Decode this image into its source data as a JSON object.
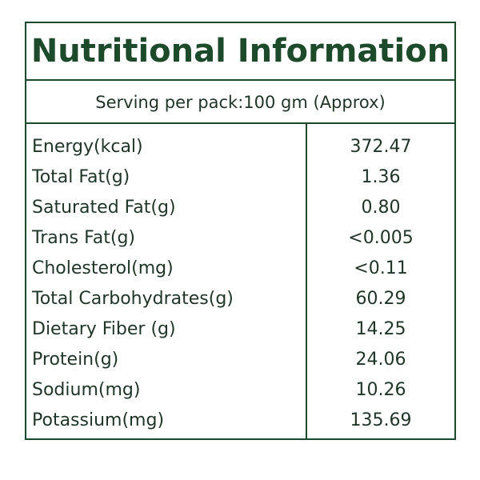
{
  "header": {
    "title": "Nutritional Information",
    "serving": "Serving per pack:100 gm (Approx)"
  },
  "table": {
    "rows": [
      [
        "Energy(kcal)",
        "372.47"
      ],
      [
        "Total Fat(g)",
        "1.36"
      ],
      [
        "Saturated Fat(g)",
        "0.80"
      ],
      [
        "Trans Fat(g)",
        "<0.005"
      ],
      [
        "Cholesterol(mg)",
        "<0.11"
      ],
      [
        "Total Carbohydrates(g)",
        "60.29"
      ],
      [
        "Dietary Fiber (g)",
        "14.25"
      ],
      [
        "Protein(g)",
        "24.06"
      ],
      [
        "Sodium(mg)",
        "10.26"
      ],
      [
        "Potassium(mg)",
        "135.69"
      ]
    ]
  }
}
